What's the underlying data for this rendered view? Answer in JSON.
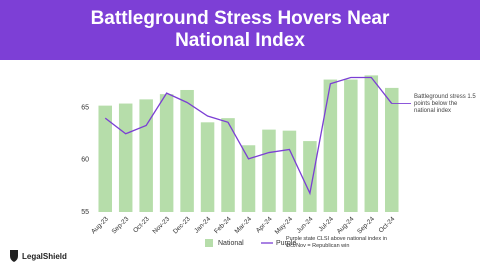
{
  "chart_data": {
    "type": "bar",
    "title": "Battleground Stress Hovers Near National Index",
    "categories": [
      "Aug-23",
      "Sep-23",
      "Oct-23",
      "Nov-23",
      "Dec-23",
      "Jan-24",
      "Feb-24",
      "Mar-24",
      "Apr-24",
      "May-24",
      "Jun-24",
      "Jul-24",
      "Aug-24",
      "Sep-24",
      "Oct-24"
    ],
    "series": [
      {
        "name": "National",
        "type": "bar",
        "color": "#b6ddaa",
        "values": [
          65.2,
          65.4,
          65.8,
          66.3,
          66.7,
          63.6,
          64.0,
          61.4,
          62.9,
          62.8,
          61.8,
          67.7,
          67.7,
          68.1,
          66.9
        ]
      },
      {
        "name": "Purple",
        "type": "line",
        "color": "#7b3fd4",
        "values": [
          64.0,
          62.5,
          63.3,
          66.4,
          65.5,
          64.2,
          63.6,
          60.1,
          60.7,
          61.0,
          56.8,
          67.3,
          67.9,
          67.9,
          65.4
        ]
      }
    ],
    "ylim": [
      55,
      69
    ],
    "yticks": [
      55,
      60,
      65
    ],
    "annotation": "Battleground stress 1.5 points below the national index",
    "legend_note": "Purple state CLSI above national index in Oct/Nov = Republican win",
    "brand": "LegalShield"
  }
}
